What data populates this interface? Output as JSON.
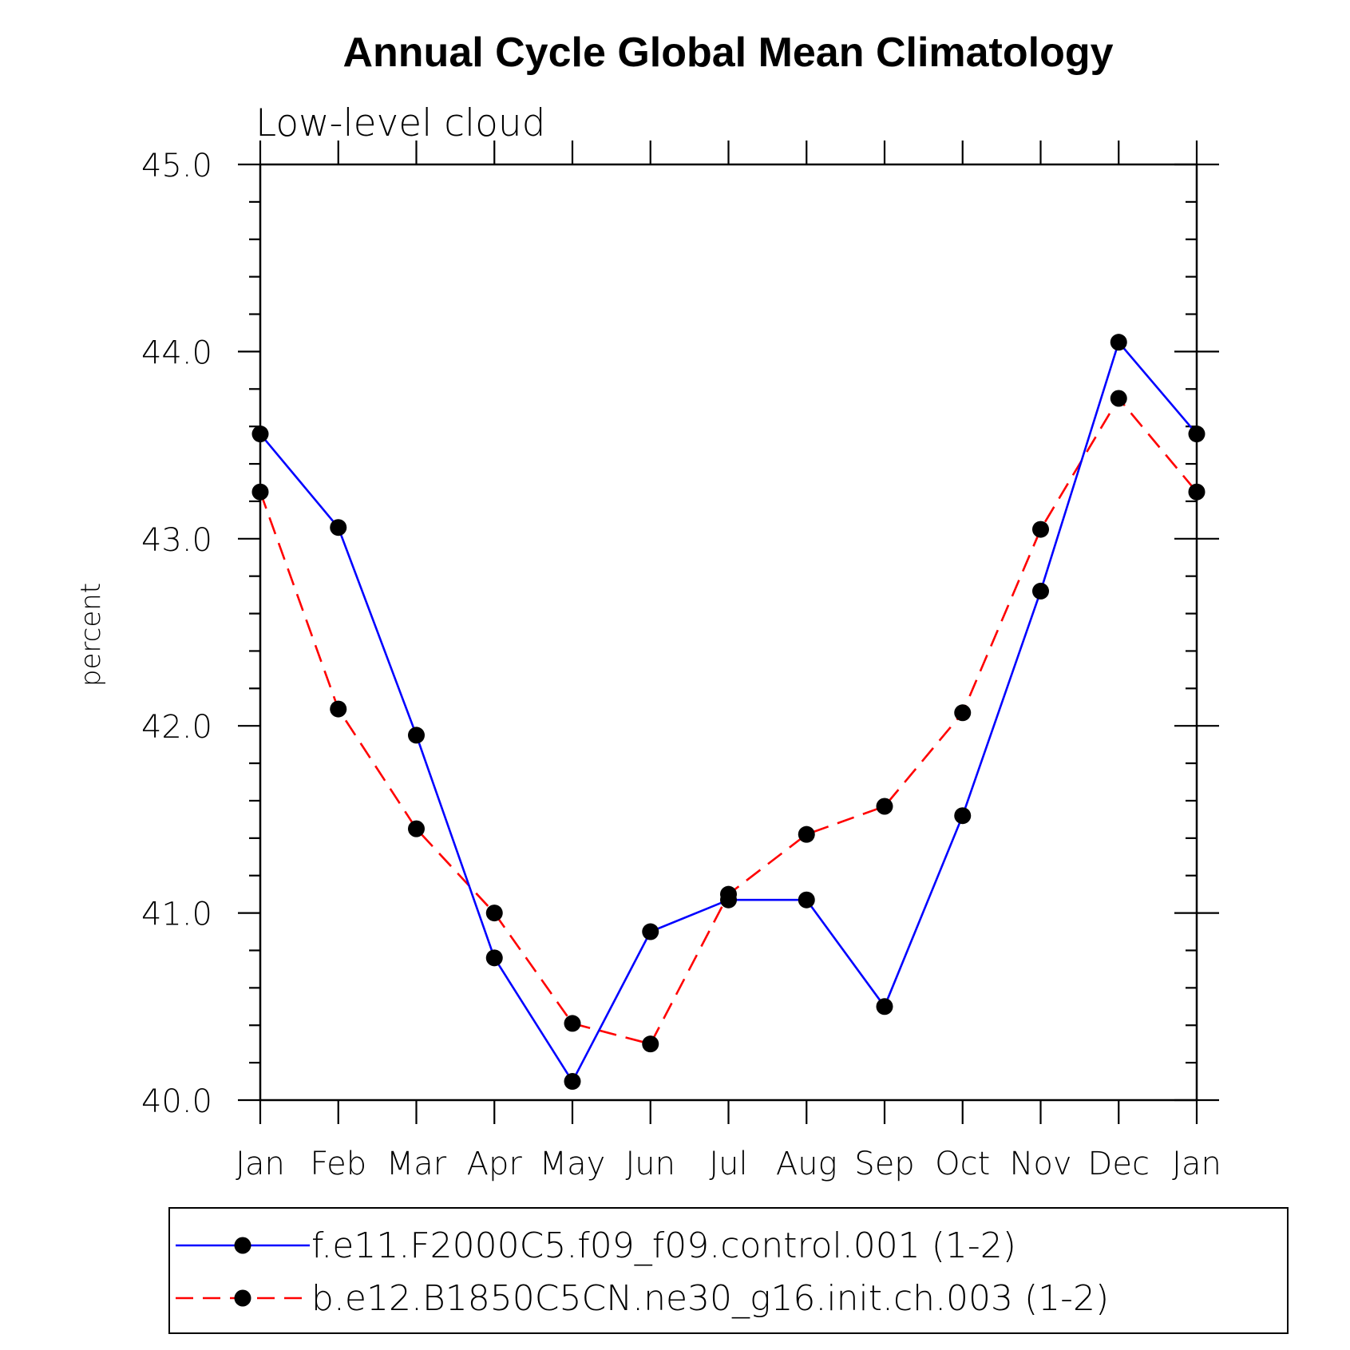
{
  "chart_data": {
    "type": "line",
    "title": "Annual Cycle Global Mean Climatology",
    "subtitle": "Low-level cloud",
    "xlabel": "",
    "ylabel": "percent",
    "categories": [
      "Jan",
      "Feb",
      "Mar",
      "Apr",
      "May",
      "Jun",
      "Jul",
      "Aug",
      "Sep",
      "Oct",
      "Nov",
      "Dec",
      "Jan"
    ],
    "ylim": [
      40.0,
      45.0
    ],
    "yticks": [
      "40.0",
      "41.0",
      "42.0",
      "43.0",
      "44.0",
      "45.0"
    ],
    "y_minor_step": 0.2,
    "legend_position": "bottom",
    "series": [
      {
        "name": "f.e11.F2000C5.f09_f09.control.001 (1-2)",
        "color": "#0000ff",
        "style": "solid",
        "values": [
          43.56,
          43.06,
          41.95,
          40.76,
          40.1,
          40.9,
          41.07,
          41.07,
          40.5,
          41.52,
          42.72,
          44.05,
          43.56
        ]
      },
      {
        "name": "b.e12.B1850C5CN.ne30_g16.init.ch.003 (1-2)",
        "color": "#ff0000",
        "style": "dashed",
        "values": [
          43.25,
          42.09,
          41.45,
          41.0,
          40.41,
          40.3,
          41.1,
          41.42,
          41.57,
          42.07,
          43.05,
          43.75,
          43.25
        ]
      }
    ]
  }
}
